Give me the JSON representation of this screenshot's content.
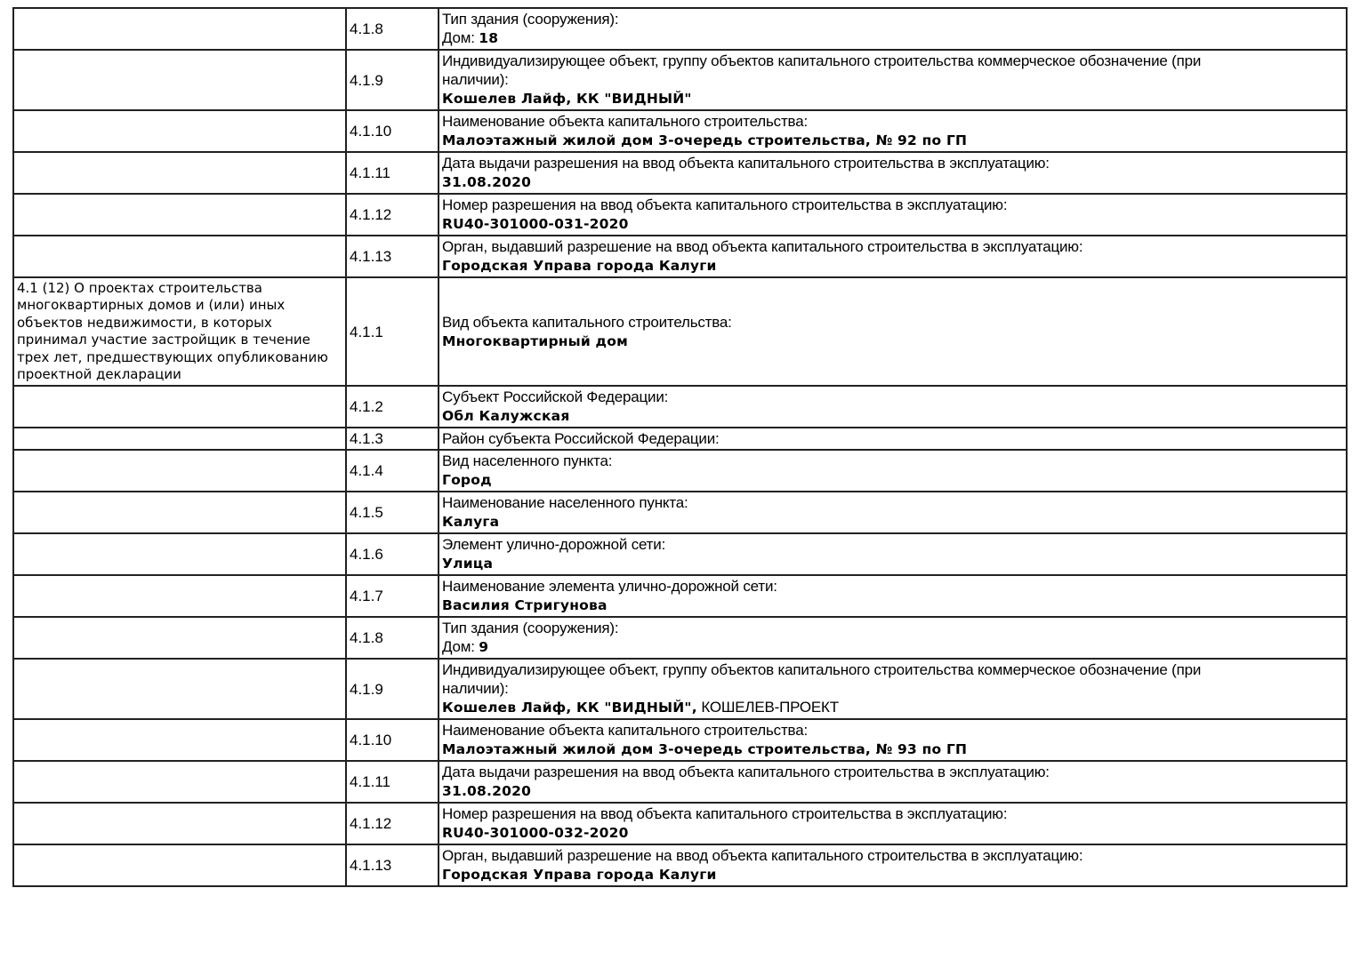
{
  "table": {
    "section_label": "4.1 (12) О проектах строительства\nмногоквартирных домов и (или) иных\nобъектов недвижимости, в которых\nпринимал участие застройщик в течение\nтрех лет, предшествующих опубликованию\nпроектной декларации",
    "rows": [
      {
        "code": "4.1.8",
        "label": "Тип здания (сооружения):",
        "value_prefix": "Дом: ",
        "value": "18"
      },
      {
        "code": "4.1.9",
        "label": "Индивидуализирующее объект, группу объектов капитального строительства коммерческое обозначение (при\nналичии):",
        "value": "Кошелев Лайф, КК \"ВИДНЫЙ\""
      },
      {
        "code": "4.1.10",
        "label": "Наименование объекта капитального строительства:",
        "value": "Малоэтажный жилой дом 3-очередь строительства, № 92 по ГП"
      },
      {
        "code": "4.1.11",
        "label": "Дата выдачи разрешения на ввод объекта капитального строительства в эксплуатацию:",
        "value": "31.08.2020"
      },
      {
        "code": "4.1.12",
        "label": "Номер разрешения на ввод объекта капитального строительства в эксплуатацию:",
        "value": "RU40-301000-031-2020"
      },
      {
        "code": "4.1.13",
        "label": "Орган, выдавший разрешение на ввод объекта капитального строительства в эксплуатацию:",
        "value": "Городская Управа города Калуги"
      },
      {
        "section": true,
        "code": "4.1.1",
        "label": "Вид объекта капитального строительства:",
        "value": "Многоквартирный дом",
        "min_height": 122
      },
      {
        "code": "4.1.2",
        "label": "Субъект Российской Федерации:",
        "value": "Обл Калужская"
      },
      {
        "code": "4.1.3",
        "label": "Район субъекта Российской Федерации:"
      },
      {
        "code": "4.1.4",
        "label": "Вид населенного пункта:",
        "value": "Город"
      },
      {
        "code": "4.1.5",
        "label": "Наименование населенного пункта:",
        "value": "Калуга"
      },
      {
        "code": "4.1.6",
        "label": "Элемент улично-дорожной сети:",
        "value": "Улица"
      },
      {
        "code": "4.1.7",
        "label": "Наименование элемента улично-дорожной сети:",
        "value": "Василия Стригунова"
      },
      {
        "code": "4.1.8",
        "label": "Тип здания (сооружения):",
        "value_prefix": "Дом: ",
        "value": "9"
      },
      {
        "code": "4.1.9",
        "label": "Индивидуализирующее объект, группу объектов капитального строительства коммерческое обозначение (при\nналичии):",
        "value": "Кошелев Лайф, КК \"ВИДНЫЙ\",",
        "value_suffix": " КОШЕЛЕВ-ПРОЕКТ"
      },
      {
        "code": "4.1.10",
        "label": "Наименование объекта капитального строительства:",
        "value": "Малоэтажный жилой дом 3-очередь строительства, № 93 по ГП"
      },
      {
        "code": "4.1.11",
        "label": "Дата выдачи разрешения на ввод объекта капитального строительства в эксплуатацию:",
        "value": "31.08.2020"
      },
      {
        "code": "4.1.12",
        "label": "Номер разрешения на ввод объекта капитального строительства в эксплуатацию:",
        "value": "RU40-301000-032-2020"
      },
      {
        "code": "4.1.13",
        "label": "Орган, выдавший разрешение на ввод объекта капитального строительства в эксплуатацию:",
        "value": "Городская Управа города Калуги"
      }
    ]
  }
}
